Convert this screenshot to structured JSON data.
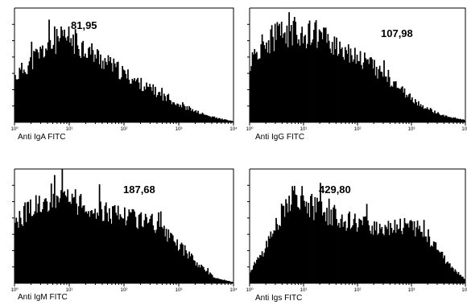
{
  "chart_data": [
    {
      "type": "histogram",
      "xlabel": "Anti IgA FITC",
      "annotation": "81,95",
      "xscale": "log",
      "xlim": [
        1,
        10000
      ],
      "tick_labels": [
        "10⁰",
        "10¹",
        "10²",
        "10³",
        "10⁴"
      ],
      "bins": 200,
      "envelope": [
        [
          0.0,
          0.42
        ],
        [
          0.05,
          0.52
        ],
        [
          0.1,
          0.62
        ],
        [
          0.15,
          0.7
        ],
        [
          0.2,
          0.76
        ],
        [
          0.25,
          0.78
        ],
        [
          0.3,
          0.72
        ],
        [
          0.4,
          0.58
        ],
        [
          0.5,
          0.45
        ],
        [
          0.6,
          0.33
        ],
        [
          0.7,
          0.22
        ],
        [
          0.8,
          0.12
        ],
        [
          0.9,
          0.05
        ],
        [
          1.0,
          0.01
        ]
      ]
    },
    {
      "type": "histogram",
      "xlabel": "Anti IgG FITC",
      "annotation": "107,98",
      "xscale": "log",
      "xlim": [
        1,
        10000
      ],
      "tick_labels": [
        "10⁰",
        "10¹",
        "10²",
        "10³",
        "10⁴"
      ],
      "bins": 200,
      "envelope": [
        [
          0.0,
          0.55
        ],
        [
          0.05,
          0.7
        ],
        [
          0.1,
          0.78
        ],
        [
          0.15,
          0.83
        ],
        [
          0.2,
          0.84
        ],
        [
          0.25,
          0.83
        ],
        [
          0.3,
          0.8
        ],
        [
          0.4,
          0.72
        ],
        [
          0.5,
          0.62
        ],
        [
          0.6,
          0.48
        ],
        [
          0.7,
          0.3
        ],
        [
          0.8,
          0.15
        ],
        [
          0.9,
          0.06
        ],
        [
          1.0,
          0.02
        ]
      ]
    },
    {
      "type": "histogram",
      "xlabel": "Anti IgM FITC",
      "annotation": "187,68",
      "xscale": "log",
      "xlim": [
        1,
        10000
      ],
      "tick_labels": [
        "10⁰",
        "10¹",
        "10²",
        "10³",
        "10⁴"
      ],
      "bins": 200,
      "envelope": [
        [
          0.0,
          0.55
        ],
        [
          0.05,
          0.66
        ],
        [
          0.1,
          0.74
        ],
        [
          0.15,
          0.8
        ],
        [
          0.2,
          0.82
        ],
        [
          0.25,
          0.78
        ],
        [
          0.3,
          0.72
        ],
        [
          0.35,
          0.68
        ],
        [
          0.45,
          0.66
        ],
        [
          0.55,
          0.62
        ],
        [
          0.65,
          0.52
        ],
        [
          0.75,
          0.35
        ],
        [
          0.85,
          0.16
        ],
        [
          0.92,
          0.05
        ],
        [
          1.0,
          0.01
        ]
      ]
    },
    {
      "type": "histogram",
      "xlabel": "Anti Igs FITC",
      "annotation": "429,80",
      "xscale": "log",
      "xlim": [
        1,
        10000
      ],
      "tick_labels": [
        "10⁰",
        "10¹",
        "10²",
        "10³",
        "10⁴"
      ],
      "bins": 200,
      "envelope": [
        [
          0.0,
          0.12
        ],
        [
          0.05,
          0.25
        ],
        [
          0.1,
          0.45
        ],
        [
          0.15,
          0.68
        ],
        [
          0.2,
          0.82
        ],
        [
          0.25,
          0.78
        ],
        [
          0.3,
          0.7
        ],
        [
          0.4,
          0.62
        ],
        [
          0.5,
          0.55
        ],
        [
          0.6,
          0.52
        ],
        [
          0.7,
          0.55
        ],
        [
          0.78,
          0.5
        ],
        [
          0.85,
          0.38
        ],
        [
          0.92,
          0.18
        ],
        [
          1.0,
          0.04
        ]
      ]
    }
  ]
}
